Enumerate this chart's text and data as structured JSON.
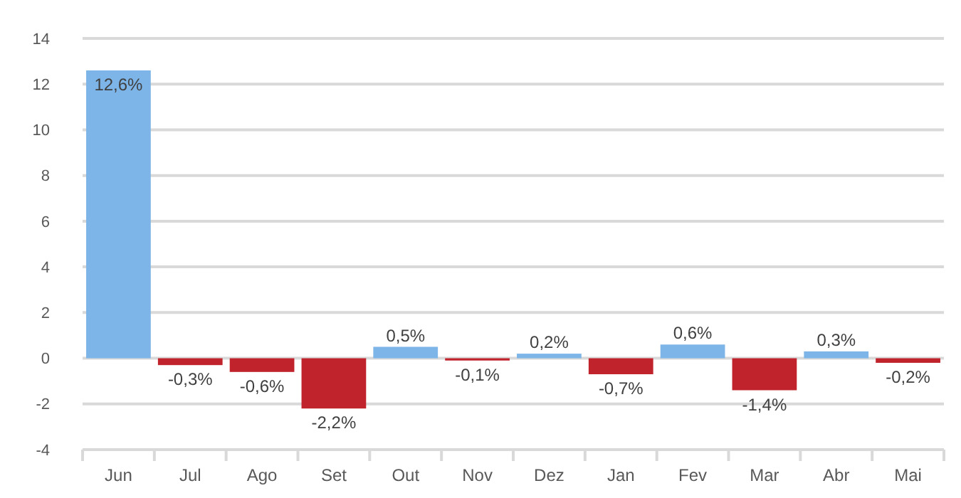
{
  "chart_data": {
    "type": "bar",
    "categories": [
      "Jun",
      "Jul",
      "Ago",
      "Set",
      "Out",
      "Nov",
      "Dez",
      "Jan",
      "Fev",
      "Mar",
      "Abr",
      "Mai"
    ],
    "values": [
      12.6,
      -0.3,
      -0.6,
      -2.2,
      0.5,
      -0.1,
      0.2,
      -0.7,
      0.6,
      -1.4,
      0.3,
      -0.2
    ],
    "colors": [
      "#7eb5e8",
      "#c0232c",
      "#c0232c",
      "#c0232c",
      "#7eb5e8",
      "#c0232c",
      "#7eb5e8",
      "#c0232c",
      "#7eb5e8",
      "#c0232c",
      "#7eb5e8",
      "#c0232c"
    ],
    "value_labels": [
      "12,6%",
      "-0,3%",
      "-0,6%",
      "-2,2%",
      "0,5%",
      "-0,1%",
      "0,2%",
      "-0,7%",
      "0,6%",
      "-1,4%",
      "0,3%",
      "-0,2%"
    ],
    "ylim": [
      -4,
      14
    ],
    "yticks": [
      -4,
      -2,
      0,
      2,
      4,
      6,
      8,
      10,
      12,
      14
    ],
    "grid": "y"
  }
}
